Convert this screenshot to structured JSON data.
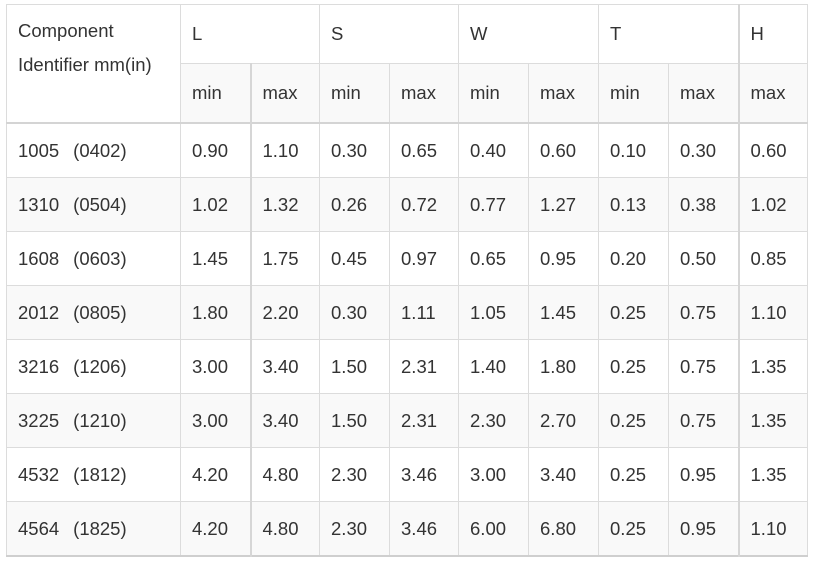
{
  "table": {
    "header": {
      "component_label": "Component Identifier mm(in)",
      "groups": [
        {
          "label": "L",
          "subs": [
            "min",
            "max"
          ]
        },
        {
          "label": "S",
          "subs": [
            "min",
            "max"
          ]
        },
        {
          "label": "W",
          "subs": [
            "min",
            "max"
          ]
        },
        {
          "label": "T",
          "subs": [
            "min",
            "max"
          ]
        },
        {
          "label": "H",
          "subs": [
            "max"
          ]
        }
      ]
    },
    "rows": [
      {
        "mm": "1005",
        "inch": "(0402)",
        "values": [
          "0.90",
          "1.10",
          "0.30",
          "0.65",
          "0.40",
          "0.60",
          "0.10",
          "0.30",
          "0.60"
        ]
      },
      {
        "mm": "1310",
        "inch": "(0504)",
        "values": [
          "1.02",
          "1.32",
          "0.26",
          "0.72",
          "0.77",
          "1.27",
          "0.13",
          "0.38",
          "1.02"
        ]
      },
      {
        "mm": "1608",
        "inch": "(0603)",
        "values": [
          "1.45",
          "1.75",
          "0.45",
          "0.97",
          "0.65",
          "0.95",
          "0.20",
          "0.50",
          "0.85"
        ]
      },
      {
        "mm": "2012",
        "inch": "(0805)",
        "values": [
          "1.80",
          "2.20",
          "0.30",
          "1.11",
          "1.05",
          "1.45",
          "0.25",
          "0.75",
          "1.10"
        ]
      },
      {
        "mm": "3216",
        "inch": "(1206)",
        "values": [
          "3.00",
          "3.40",
          "1.50",
          "2.31",
          "1.40",
          "1.80",
          "0.25",
          "0.75",
          "1.35"
        ]
      },
      {
        "mm": "3225",
        "inch": "(1210)",
        "values": [
          "3.00",
          "3.40",
          "1.50",
          "2.31",
          "2.30",
          "2.70",
          "0.25",
          "0.75",
          "1.35"
        ]
      },
      {
        "mm": "4532",
        "inch": "(1812)",
        "values": [
          "4.20",
          "4.80",
          "2.30",
          "3.46",
          "3.00",
          "3.40",
          "0.25",
          "0.95",
          "1.35"
        ]
      },
      {
        "mm": "4564",
        "inch": "(1825)",
        "values": [
          "4.20",
          "4.80",
          "2.30",
          "3.46",
          "6.00",
          "6.80",
          "0.25",
          "0.95",
          "1.10"
        ]
      }
    ]
  }
}
